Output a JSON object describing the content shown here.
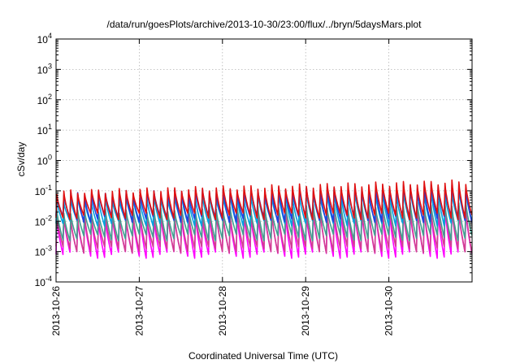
{
  "chart_data": {
    "type": "line",
    "title": "/data/run/goesPlots/archive/2013-10-30/23:00/flux/../bryn/5daysMars.plot",
    "xlabel": "Coordinated Universal Time (UTC)",
    "ylabel": "cSv/day",
    "x_range": [
      "2013-10-26",
      "2013-10-31"
    ],
    "x_ticks": [
      "2013-10-26",
      "2013-10-27",
      "2013-10-28",
      "2013-10-29",
      "2013-10-30"
    ],
    "y_scale": "log",
    "ylim": [
      0.0001,
      10000
    ],
    "y_ticks": [
      {
        "base": "10",
        "exp": "-4"
      },
      {
        "base": "10",
        "exp": "-3"
      },
      {
        "base": "10",
        "exp": "-2"
      },
      {
        "base": "10",
        "exp": "-1"
      },
      {
        "base": "10",
        "exp": "0"
      },
      {
        "base": "10",
        "exp": "1"
      },
      {
        "base": "10",
        "exp": "2"
      },
      {
        "base": "10",
        "exp": "3"
      },
      {
        "base": "10",
        "exp": "4"
      }
    ],
    "grid": true,
    "legend": "none",
    "sawtooth_period_days": 0.0833,
    "series": [
      {
        "color": "#ff00ff",
        "peak_start": 0.012,
        "peak_end": 0.025,
        "trough": 0.0008
      },
      {
        "color": "#d04090",
        "peak_start": 0.014,
        "peak_end": 0.03,
        "trough": 0.0012
      },
      {
        "color": "#40a090",
        "peak_start": 0.02,
        "peak_end": 0.04,
        "trough": 0.003
      },
      {
        "color": "#00a0e0",
        "peak_start": 0.05,
        "peak_end": 0.1,
        "trough": 0.009
      },
      {
        "color": "#2040e0",
        "peak_start": 0.08,
        "peak_end": 0.15,
        "trough": 0.012
      },
      {
        "color": "#e01010",
        "peak_start": 0.09,
        "peak_end": 0.2,
        "trough": 0.015
      }
    ]
  }
}
